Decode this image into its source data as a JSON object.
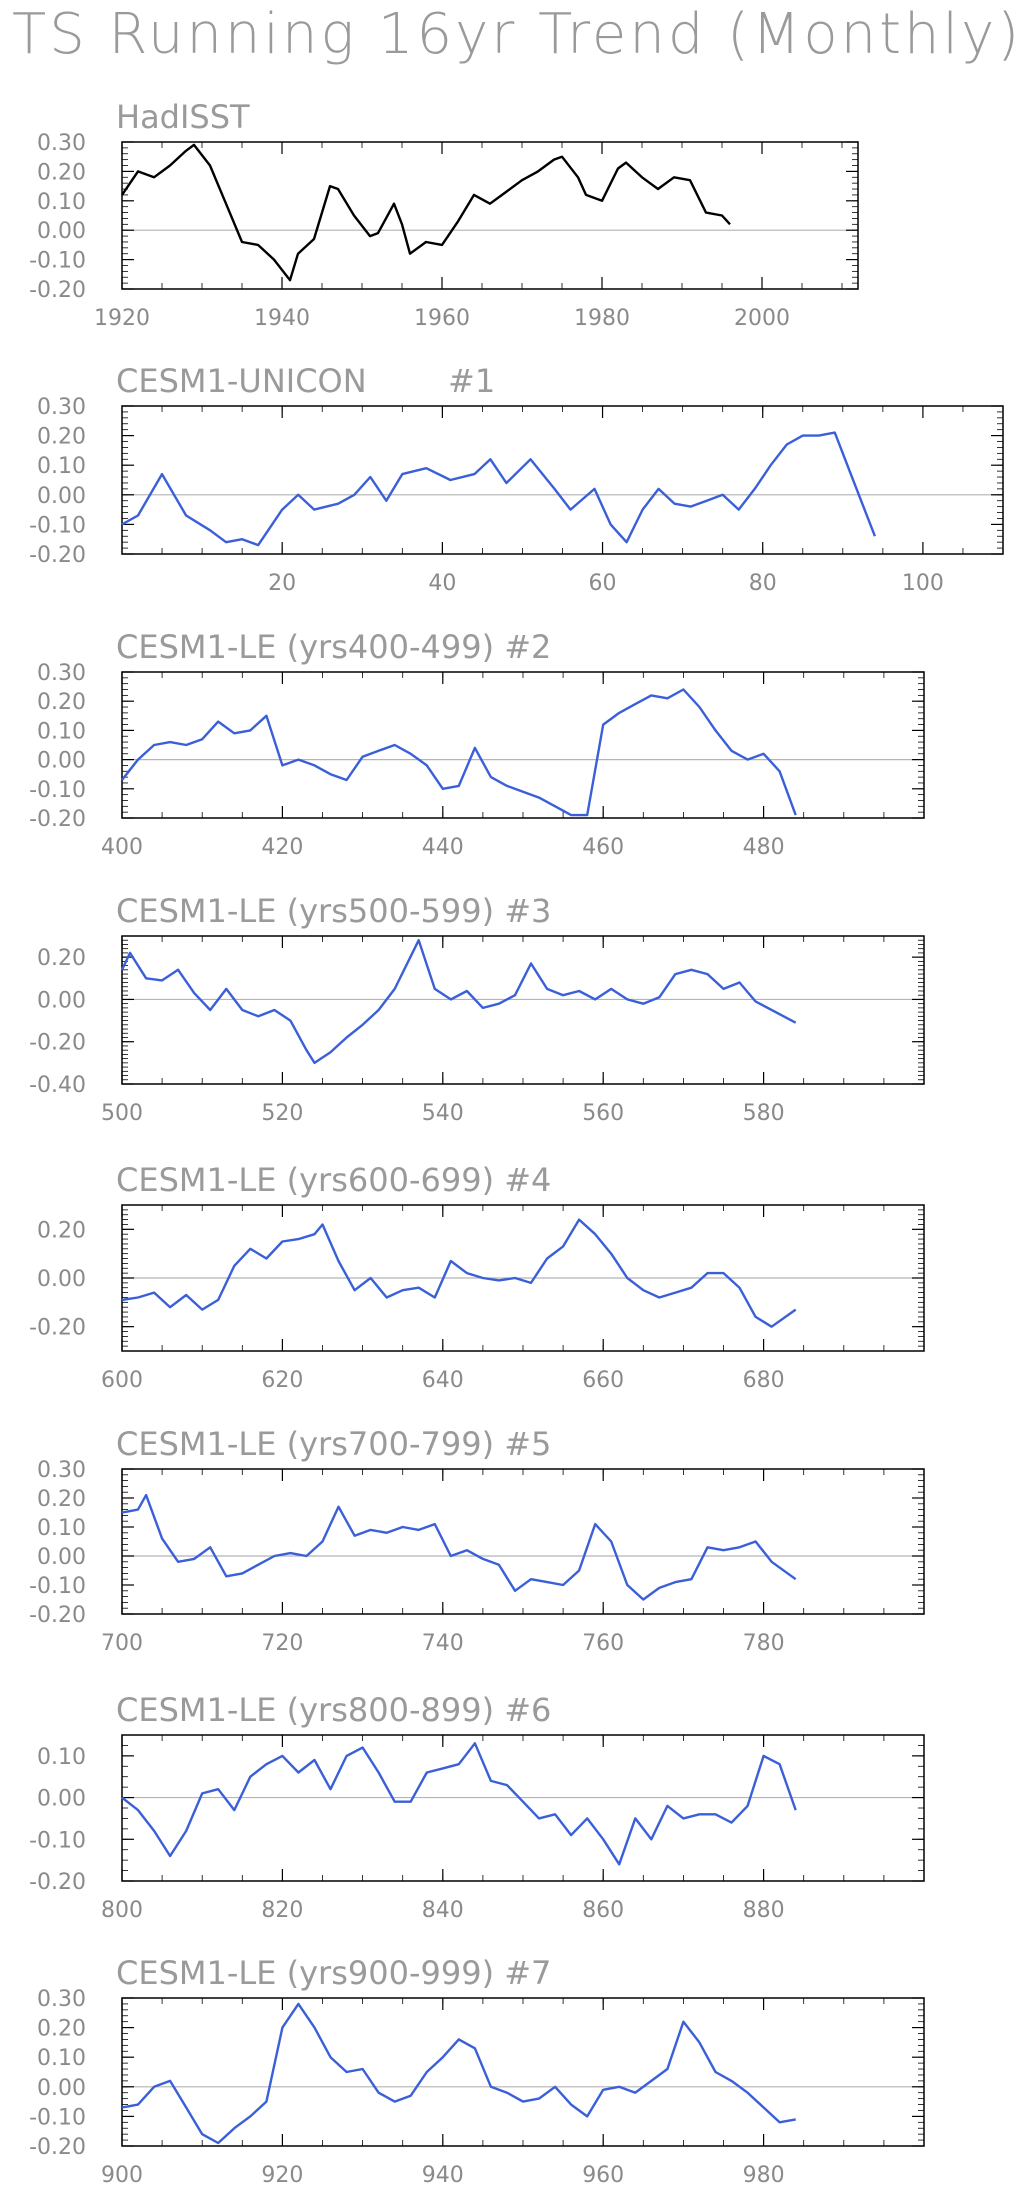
{
  "title": "TS Running 16yr Trend (Monthly)",
  "colors": {
    "obs": "#000000",
    "model": "#3a5fd8",
    "frame": "#000000",
    "zero": "#b4b4b4",
    "text": "#9a9a9a"
  },
  "chart_data": [
    {
      "type": "line",
      "title": "HadISST",
      "color": "#000000",
      "xlim": [
        1920,
        2012
      ],
      "ylim": [
        -0.2,
        0.3
      ],
      "xticks": [
        1920,
        1940,
        1960,
        1980,
        2000
      ],
      "yticks": [
        -0.2,
        -0.1,
        0.0,
        0.1,
        0.2,
        0.3
      ],
      "ytick_labels": [
        "-0.20",
        "-0.10",
        "0.00",
        "0.10",
        "0.20",
        "0.30"
      ],
      "x": [
        1920,
        1922,
        1924,
        1926,
        1928,
        1929,
        1931,
        1933,
        1935,
        1937,
        1939,
        1941,
        1942,
        1944,
        1946,
        1947,
        1949,
        1951,
        1952,
        1954,
        1955,
        1956,
        1958,
        1960,
        1962,
        1964,
        1966,
        1968,
        1970,
        1972,
        1974,
        1975,
        1977,
        1978,
        1980,
        1982,
        1983,
        1985,
        1987,
        1989,
        1991,
        1993,
        1995,
        1996
      ],
      "y": [
        0.12,
        0.2,
        0.18,
        0.22,
        0.27,
        0.29,
        0.22,
        0.09,
        -0.04,
        -0.05,
        -0.1,
        -0.17,
        -0.08,
        -0.03,
        0.15,
        0.14,
        0.05,
        -0.02,
        -0.01,
        0.09,
        0.02,
        -0.08,
        -0.04,
        -0.05,
        0.03,
        0.12,
        0.09,
        0.13,
        0.17,
        0.2,
        0.24,
        0.25,
        0.18,
        0.12,
        0.1,
        0.21,
        0.23,
        0.18,
        0.14,
        0.18,
        0.17,
        0.06,
        0.05,
        0.02
      ]
    },
    {
      "type": "line",
      "title": "CESM1-UNICON        #1",
      "color": "#3a5fd8",
      "xlim": [
        0,
        110
      ],
      "ylim": [
        -0.2,
        0.3
      ],
      "xticks": [
        20,
        40,
        60,
        80,
        100
      ],
      "yticks": [
        -0.2,
        -0.1,
        0.0,
        0.1,
        0.2,
        0.3
      ],
      "ytick_labels": [
        "-0.20",
        "-0.10",
        "0.00",
        "0.10",
        "0.20",
        "0.30"
      ],
      "x": [
        0,
        2,
        5,
        8,
        11,
        13,
        15,
        17,
        20,
        22,
        24,
        27,
        29,
        31,
        33,
        35,
        38,
        41,
        44,
        46,
        48,
        51,
        54,
        56,
        59,
        61,
        63,
        65,
        67,
        69,
        71,
        73,
        75,
        77,
        79,
        81,
        83,
        85,
        87,
        89,
        91,
        94
      ],
      "y": [
        -0.1,
        -0.07,
        0.07,
        -0.07,
        -0.12,
        -0.16,
        -0.15,
        -0.17,
        -0.05,
        0.0,
        -0.05,
        -0.03,
        0.0,
        0.06,
        -0.02,
        0.07,
        0.09,
        0.05,
        0.07,
        0.12,
        0.04,
        0.12,
        0.02,
        -0.05,
        0.02,
        -0.1,
        -0.16,
        -0.05,
        0.02,
        -0.03,
        -0.04,
        -0.02,
        0.0,
        -0.05,
        0.02,
        0.1,
        0.17,
        0.2,
        0.2,
        0.21,
        0.07,
        -0.14
      ]
    },
    {
      "type": "line",
      "title": "CESM1-LE (yrs400-499) #2",
      "color": "#3a5fd8",
      "xlim": [
        400,
        500
      ],
      "ylim": [
        -0.2,
        0.3
      ],
      "xticks": [
        400,
        420,
        440,
        460,
        480
      ],
      "yticks": [
        -0.2,
        -0.1,
        0.0,
        0.1,
        0.2,
        0.3
      ],
      "ytick_labels": [
        "-0.20",
        "-0.10",
        "0.00",
        "0.10",
        "0.20",
        "0.30"
      ],
      "x": [
        400,
        402,
        404,
        406,
        408,
        410,
        412,
        414,
        416,
        418,
        420,
        422,
        424,
        426,
        428,
        430,
        432,
        434,
        436,
        438,
        440,
        442,
        444,
        446,
        448,
        450,
        452,
        454,
        456,
        458,
        460,
        462,
        464,
        466,
        468,
        470,
        472,
        474,
        476,
        478,
        480,
        482,
        484
      ],
      "y": [
        -0.07,
        0.0,
        0.05,
        0.06,
        0.05,
        0.07,
        0.13,
        0.09,
        0.1,
        0.15,
        -0.02,
        0.0,
        -0.02,
        -0.05,
        -0.07,
        0.01,
        0.03,
        0.05,
        0.02,
        -0.02,
        -0.1,
        -0.09,
        0.04,
        -0.06,
        -0.09,
        -0.11,
        -0.13,
        -0.16,
        -0.19,
        -0.19,
        0.12,
        0.16,
        0.19,
        0.22,
        0.21,
        0.24,
        0.18,
        0.1,
        0.03,
        0.0,
        0.02,
        -0.04,
        -0.19
      ]
    },
    {
      "type": "line",
      "title": "CESM1-LE (yrs500-599) #3",
      "color": "#3a5fd8",
      "xlim": [
        500,
        600
      ],
      "ylim": [
        -0.4,
        0.3
      ],
      "xticks": [
        500,
        520,
        540,
        560,
        580
      ],
      "yticks": [
        -0.4,
        -0.2,
        0.0,
        0.2
      ],
      "ytick_labels": [
        "-0.40",
        "-0.20",
        "0.00",
        "0.20"
      ],
      "x": [
        500,
        501,
        503,
        505,
        507,
        509,
        511,
        513,
        515,
        517,
        519,
        521,
        523,
        524,
        526,
        528,
        530,
        532,
        534,
        537,
        539,
        541,
        543,
        545,
        547,
        549,
        551,
        553,
        555,
        557,
        559,
        561,
        563,
        565,
        567,
        569,
        571,
        573,
        575,
        577,
        579,
        582,
        584
      ],
      "y": [
        0.14,
        0.22,
        0.1,
        0.09,
        0.14,
        0.03,
        -0.05,
        0.05,
        -0.05,
        -0.08,
        -0.05,
        -0.1,
        -0.24,
        -0.3,
        -0.25,
        -0.18,
        -0.12,
        -0.05,
        0.05,
        0.28,
        0.05,
        0.0,
        0.04,
        -0.04,
        -0.02,
        0.02,
        0.17,
        0.05,
        0.02,
        0.04,
        0.0,
        0.05,
        0.0,
        -0.02,
        0.01,
        0.12,
        0.14,
        0.12,
        0.05,
        0.08,
        -0.01,
        -0.07,
        -0.11
      ]
    },
    {
      "type": "line",
      "title": "CESM1-LE (yrs600-699) #4",
      "color": "#3a5fd8",
      "xlim": [
        600,
        700
      ],
      "ylim": [
        -0.3,
        0.3
      ],
      "xticks": [
        600,
        620,
        640,
        660,
        680
      ],
      "yticks": [
        -0.2,
        0.0,
        0.2
      ],
      "ytick_labels": [
        "-0.20",
        "0.00",
        "0.20"
      ],
      "x": [
        600,
        602,
        604,
        606,
        608,
        610,
        612,
        614,
        616,
        618,
        620,
        622,
        624,
        625,
        627,
        629,
        631,
        633,
        635,
        637,
        639,
        641,
        643,
        645,
        647,
        649,
        651,
        653,
        655,
        657,
        659,
        661,
        663,
        665,
        667,
        669,
        671,
        673,
        675,
        677,
        679,
        681,
        684
      ],
      "y": [
        -0.09,
        -0.08,
        -0.06,
        -0.12,
        -0.07,
        -0.13,
        -0.09,
        0.05,
        0.12,
        0.08,
        0.15,
        0.16,
        0.18,
        0.22,
        0.07,
        -0.05,
        0.0,
        -0.08,
        -0.05,
        -0.04,
        -0.08,
        0.07,
        0.02,
        0.0,
        -0.01,
        0.0,
        -0.02,
        0.08,
        0.13,
        0.24,
        0.18,
        0.1,
        0.0,
        -0.05,
        -0.08,
        -0.06,
        -0.04,
        0.02,
        0.02,
        -0.04,
        -0.16,
        -0.2,
        -0.13
      ]
    },
    {
      "type": "line",
      "title": "CESM1-LE (yrs700-799) #5",
      "color": "#3a5fd8",
      "xlim": [
        700,
        800
      ],
      "ylim": [
        -0.2,
        0.3
      ],
      "xticks": [
        700,
        720,
        740,
        760,
        780
      ],
      "yticks": [
        -0.2,
        -0.1,
        0.0,
        0.1,
        0.2,
        0.3
      ],
      "ytick_labels": [
        "-0.20",
        "-0.10",
        "0.00",
        "0.10",
        "0.20",
        "0.30"
      ],
      "x": [
        700,
        702,
        703,
        705,
        707,
        709,
        711,
        713,
        715,
        717,
        719,
        721,
        723,
        725,
        727,
        729,
        731,
        733,
        735,
        737,
        739,
        741,
        743,
        745,
        747,
        749,
        751,
        753,
        755,
        757,
        759,
        761,
        763,
        765,
        767,
        769,
        771,
        773,
        775,
        777,
        779,
        781,
        784
      ],
      "y": [
        0.15,
        0.16,
        0.21,
        0.06,
        -0.02,
        -0.01,
        0.03,
        -0.07,
        -0.06,
        -0.03,
        0.0,
        0.01,
        0.0,
        0.05,
        0.17,
        0.07,
        0.09,
        0.08,
        0.1,
        0.09,
        0.11,
        0.0,
        0.02,
        -0.01,
        -0.03,
        -0.12,
        -0.08,
        -0.09,
        -0.1,
        -0.05,
        0.11,
        0.05,
        -0.1,
        -0.15,
        -0.11,
        -0.09,
        -0.08,
        0.03,
        0.02,
        0.03,
        0.05,
        -0.02,
        -0.08
      ]
    },
    {
      "type": "line",
      "title": "CESM1-LE (yrs800-899) #6",
      "color": "#3a5fd8",
      "xlim": [
        800,
        900
      ],
      "ylim": [
        -0.2,
        0.15
      ],
      "xticks": [
        800,
        820,
        840,
        860,
        880
      ],
      "yticks": [
        -0.2,
        -0.1,
        0.0,
        0.1
      ],
      "ytick_labels": [
        "-0.20",
        "-0.10",
        "0.00",
        "0.10"
      ],
      "x": [
        800,
        802,
        804,
        806,
        808,
        810,
        812,
        814,
        816,
        818,
        820,
        822,
        824,
        826,
        828,
        830,
        832,
        834,
        836,
        838,
        840,
        842,
        844,
        846,
        848,
        850,
        852,
        854,
        856,
        858,
        860,
        862,
        864,
        866,
        868,
        870,
        872,
        874,
        876,
        878,
        880,
        882,
        884
      ],
      "y": [
        0.0,
        -0.03,
        -0.08,
        -0.14,
        -0.08,
        0.01,
        0.02,
        -0.03,
        0.05,
        0.08,
        0.1,
        0.06,
        0.09,
        0.02,
        0.1,
        0.12,
        0.06,
        -0.01,
        -0.01,
        0.06,
        0.07,
        0.08,
        0.13,
        0.04,
        0.03,
        -0.01,
        -0.05,
        -0.04,
        -0.09,
        -0.05,
        -0.1,
        -0.16,
        -0.05,
        -0.1,
        -0.02,
        -0.05,
        -0.04,
        -0.04,
        -0.06,
        -0.02,
        0.1,
        0.08,
        -0.03
      ]
    },
    {
      "type": "line",
      "title": "CESM1-LE (yrs900-999) #7",
      "color": "#3a5fd8",
      "xlim": [
        900,
        1000
      ],
      "ylim": [
        -0.2,
        0.3
      ],
      "xticks": [
        900,
        920,
        940,
        960,
        980
      ],
      "yticks": [
        -0.2,
        -0.1,
        0.0,
        0.1,
        0.2,
        0.3
      ],
      "ytick_labels": [
        "-0.20",
        "-0.10",
        "0.00",
        "0.10",
        "0.20",
        "0.30"
      ],
      "x": [
        900,
        902,
        904,
        906,
        908,
        910,
        912,
        914,
        916,
        918,
        920,
        922,
        924,
        926,
        928,
        930,
        932,
        934,
        936,
        938,
        940,
        942,
        944,
        946,
        948,
        950,
        952,
        954,
        956,
        958,
        960,
        962,
        964,
        966,
        968,
        970,
        972,
        974,
        976,
        978,
        980,
        982,
        984
      ],
      "y": [
        -0.07,
        -0.06,
        0.0,
        0.02,
        -0.07,
        -0.16,
        -0.19,
        -0.14,
        -0.1,
        -0.05,
        0.2,
        0.28,
        0.2,
        0.1,
        0.05,
        0.06,
        -0.02,
        -0.05,
        -0.03,
        0.05,
        0.1,
        0.16,
        0.13,
        0.0,
        -0.02,
        -0.05,
        -0.04,
        0.0,
        -0.06,
        -0.1,
        -0.01,
        0.0,
        -0.02,
        0.02,
        0.06,
        0.22,
        0.15,
        0.05,
        0.02,
        -0.02,
        -0.07,
        -0.12,
        -0.11
      ]
    }
  ]
}
